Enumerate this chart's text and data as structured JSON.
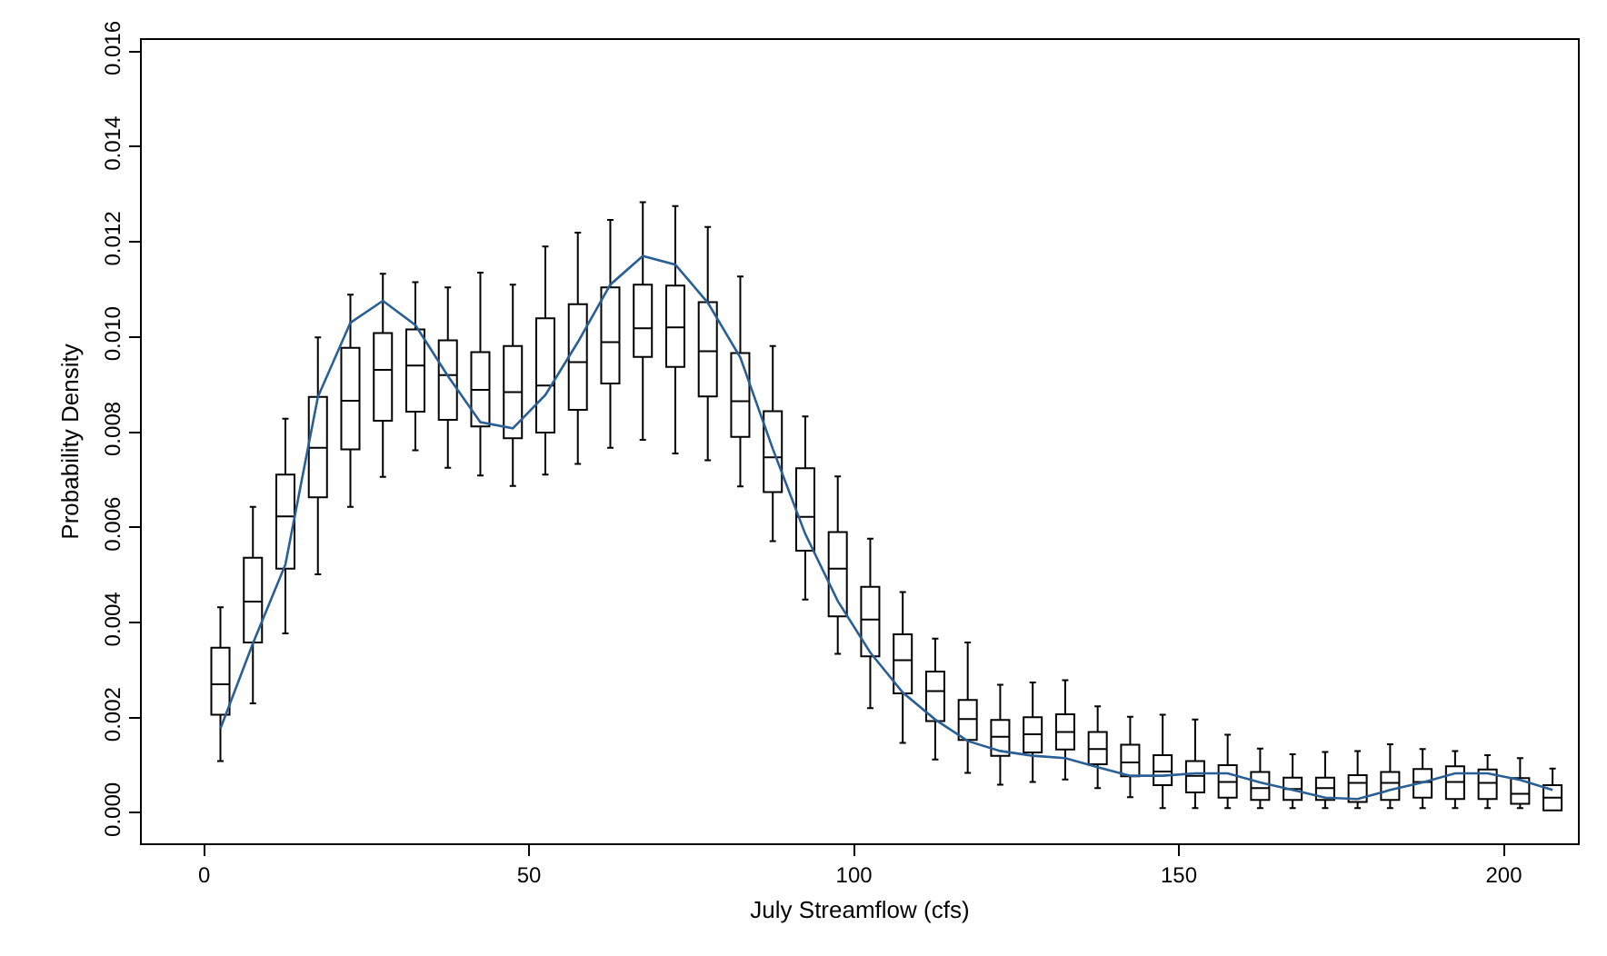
{
  "chart_data": {
    "type": "box",
    "xlabel": "July Streamflow (cfs)",
    "ylabel": "Probability Density",
    "x": [
      2.5,
      7.5,
      12.5,
      17.5,
      22.5,
      27.5,
      32.5,
      37.5,
      42.5,
      47.5,
      52.5,
      57.5,
      62.5,
      67.5,
      72.5,
      77.5,
      82.5,
      87.5,
      92.5,
      97.5,
      102.5,
      107.5,
      112.5,
      117.5,
      122.5,
      127.5,
      132.5,
      137.5,
      142.5,
      147.5,
      152.5,
      157.5,
      162.5,
      167.5,
      172.5,
      177.5,
      182.5,
      187.5,
      192.5,
      197.5,
      202.5,
      207.5
    ],
    "xlim": [
      -9.6,
      211.4
    ],
    "xticks": [
      0,
      50,
      100,
      150,
      200
    ],
    "ylim": [
      -0.00064,
      0.01624
    ],
    "yticks": [
      {
        "value": 0,
        "label": "0.000"
      },
      0.002,
      0.004,
      0.006,
      0.008,
      {
        "value": 0.01,
        "label": "0.010"
      },
      0.012,
      0.014,
      0.016
    ],
    "series": [
      {
        "type": "box",
        "color": "#000000",
        "boxes": [
          {
            "low": 0.00109,
            "q1": 0.00206,
            "median": 0.0027,
            "q3": 0.00347,
            "high": 0.00432
          },
          {
            "low": 0.0023,
            "q1": 0.00358,
            "median": 0.00444,
            "q3": 0.00536,
            "high": 0.00643
          },
          {
            "low": 0.00377,
            "q1": 0.00513,
            "median": 0.00623,
            "q3": 0.00711,
            "high": 0.00828
          },
          {
            "low": 0.00501,
            "q1": 0.00663,
            "median": 0.00767,
            "q3": 0.00874,
            "high": 0.00999
          },
          {
            "low": 0.00643,
            "q1": 0.00764,
            "median": 0.00866,
            "q3": 0.00977,
            "high": 0.01089
          },
          {
            "low": 0.00706,
            "q1": 0.00824,
            "median": 0.00931,
            "q3": 0.01008,
            "high": 0.01133
          },
          {
            "low": 0.00762,
            "q1": 0.00843,
            "median": 0.0094,
            "q3": 0.01016,
            "high": 0.01115
          },
          {
            "low": 0.00725,
            "q1": 0.00826,
            "median": 0.0092,
            "q3": 0.00993,
            "high": 0.01104
          },
          {
            "low": 0.00709,
            "q1": 0.00812,
            "median": 0.00889,
            "q3": 0.00968,
            "high": 0.01135
          },
          {
            "low": 0.00687,
            "q1": 0.00787,
            "median": 0.00884,
            "q3": 0.00981,
            "high": 0.0111
          },
          {
            "low": 0.00711,
            "q1": 0.00799,
            "median": 0.00898,
            "q3": 0.01039,
            "high": 0.0119
          },
          {
            "low": 0.00733,
            "q1": 0.00847,
            "median": 0.00947,
            "q3": 0.01069,
            "high": 0.01219
          },
          {
            "low": 0.00767,
            "q1": 0.00902,
            "median": 0.00989,
            "q3": 0.01104,
            "high": 0.01246
          },
          {
            "low": 0.00784,
            "q1": 0.00958,
            "median": 0.01018,
            "q3": 0.0111,
            "high": 0.01283
          },
          {
            "low": 0.00755,
            "q1": 0.00937,
            "median": 0.0102,
            "q3": 0.01108,
            "high": 0.01275
          },
          {
            "low": 0.00741,
            "q1": 0.00875,
            "median": 0.0097,
            "q3": 0.01073,
            "high": 0.01231
          },
          {
            "low": 0.00686,
            "q1": 0.0079,
            "median": 0.00865,
            "q3": 0.00966,
            "high": 0.01127
          },
          {
            "low": 0.00571,
            "q1": 0.00674,
            "median": 0.00747,
            "q3": 0.00844,
            "high": 0.00981
          },
          {
            "low": 0.00448,
            "q1": 0.00551,
            "median": 0.00622,
            "q3": 0.00724,
            "high": 0.00833
          },
          {
            "low": 0.00334,
            "q1": 0.00413,
            "median": 0.00513,
            "q3": 0.0059,
            "high": 0.00707
          },
          {
            "low": 0.0022,
            "q1": 0.00329,
            "median": 0.00406,
            "q3": 0.00475,
            "high": 0.00576
          },
          {
            "low": 0.00147,
            "q1": 0.00251,
            "median": 0.00321,
            "q3": 0.00375,
            "high": 0.00464
          },
          {
            "low": 0.00112,
            "q1": 0.00193,
            "median": 0.00256,
            "q3": 0.00297,
            "high": 0.00366
          },
          {
            "low": 0.00084,
            "q1": 0.00153,
            "median": 0.00197,
            "q3": 0.00237,
            "high": 0.00358
          },
          {
            "low": 0.00059,
            "q1": 0.0012,
            "median": 0.0016,
            "q3": 0.00195,
            "high": 0.00269
          },
          {
            "low": 0.00065,
            "q1": 0.00127,
            "median": 0.00165,
            "q3": 0.00201,
            "high": 0.00274
          },
          {
            "low": 0.0007,
            "q1": 0.00133,
            "median": 0.0017,
            "q3": 0.00207,
            "high": 0.00279
          },
          {
            "low": 0.00052,
            "q1": 0.00102,
            "median": 0.00134,
            "q3": 0.0017,
            "high": 0.00224
          },
          {
            "low": 0.00033,
            "q1": 0.00077,
            "median": 0.00106,
            "q3": 0.00143,
            "high": 0.00202
          },
          {
            "low": 0.0001,
            "q1": 0.00058,
            "median": 0.00087,
            "q3": 0.00121,
            "high": 0.00206
          },
          {
            "low": 0.0001,
            "q1": 0.00043,
            "median": 0.00078,
            "q3": 0.00109,
            "high": 0.00196
          },
          {
            "low": 0.0001,
            "q1": 0.00032,
            "median": 0.00065,
            "q3": 0.001,
            "high": 0.00164
          },
          {
            "low": 0.0001,
            "q1": 0.00027,
            "median": 0.00052,
            "q3": 0.00086,
            "high": 0.00135
          },
          {
            "low": 0.0001,
            "q1": 0.00027,
            "median": 0.0005,
            "q3": 0.00074,
            "high": 0.00123
          },
          {
            "low": 0.0001,
            "q1": 0.00027,
            "median": 0.00052,
            "q3": 0.00074,
            "high": 0.00128
          },
          {
            "low": 0.0001,
            "q1": 0.00023,
            "median": 0.00063,
            "q3": 0.00079,
            "high": 0.0013
          },
          {
            "low": 0.0001,
            "q1": 0.00027,
            "median": 0.00063,
            "q3": 0.00086,
            "high": 0.00144
          },
          {
            "low": 0.0001,
            "q1": 0.00032,
            "median": 0.00065,
            "q3": 0.00092,
            "high": 0.00134
          },
          {
            "low": 0.0001,
            "q1": 0.00029,
            "median": 0.00065,
            "q3": 0.00098,
            "high": 0.0013
          },
          {
            "low": 0.0001,
            "q1": 0.00029,
            "median": 0.00063,
            "q3": 0.00091,
            "high": 0.00121
          },
          {
            "low": 0.0001,
            "q1": 0.00019,
            "median": 0.0004,
            "q3": 0.00073,
            "high": 0.00115
          },
          {
            "low": 0.0001,
            "q1": 5e-05,
            "median": 0.00032,
            "q3": 0.00058,
            "high": 0.00093
          }
        ]
      },
      {
        "type": "line",
        "color": "#2a5f96",
        "values": [
          0.00177,
          0.00356,
          0.00522,
          0.00874,
          0.0103,
          0.01076,
          0.01025,
          0.00918,
          0.00821,
          0.00808,
          0.00878,
          0.00989,
          0.0111,
          0.0117,
          0.01152,
          0.01072,
          0.00957,
          0.00765,
          0.00586,
          0.00445,
          0.00337,
          0.00253,
          0.00196,
          0.00151,
          0.0013,
          0.0012,
          0.00115,
          0.00096,
          0.00078,
          0.00078,
          0.00083,
          0.00083,
          0.00064,
          0.00048,
          0.00032,
          0.00029,
          0.00048,
          0.00064,
          0.00083,
          0.00083,
          0.00069,
          0.00048
        ]
      }
    ]
  }
}
